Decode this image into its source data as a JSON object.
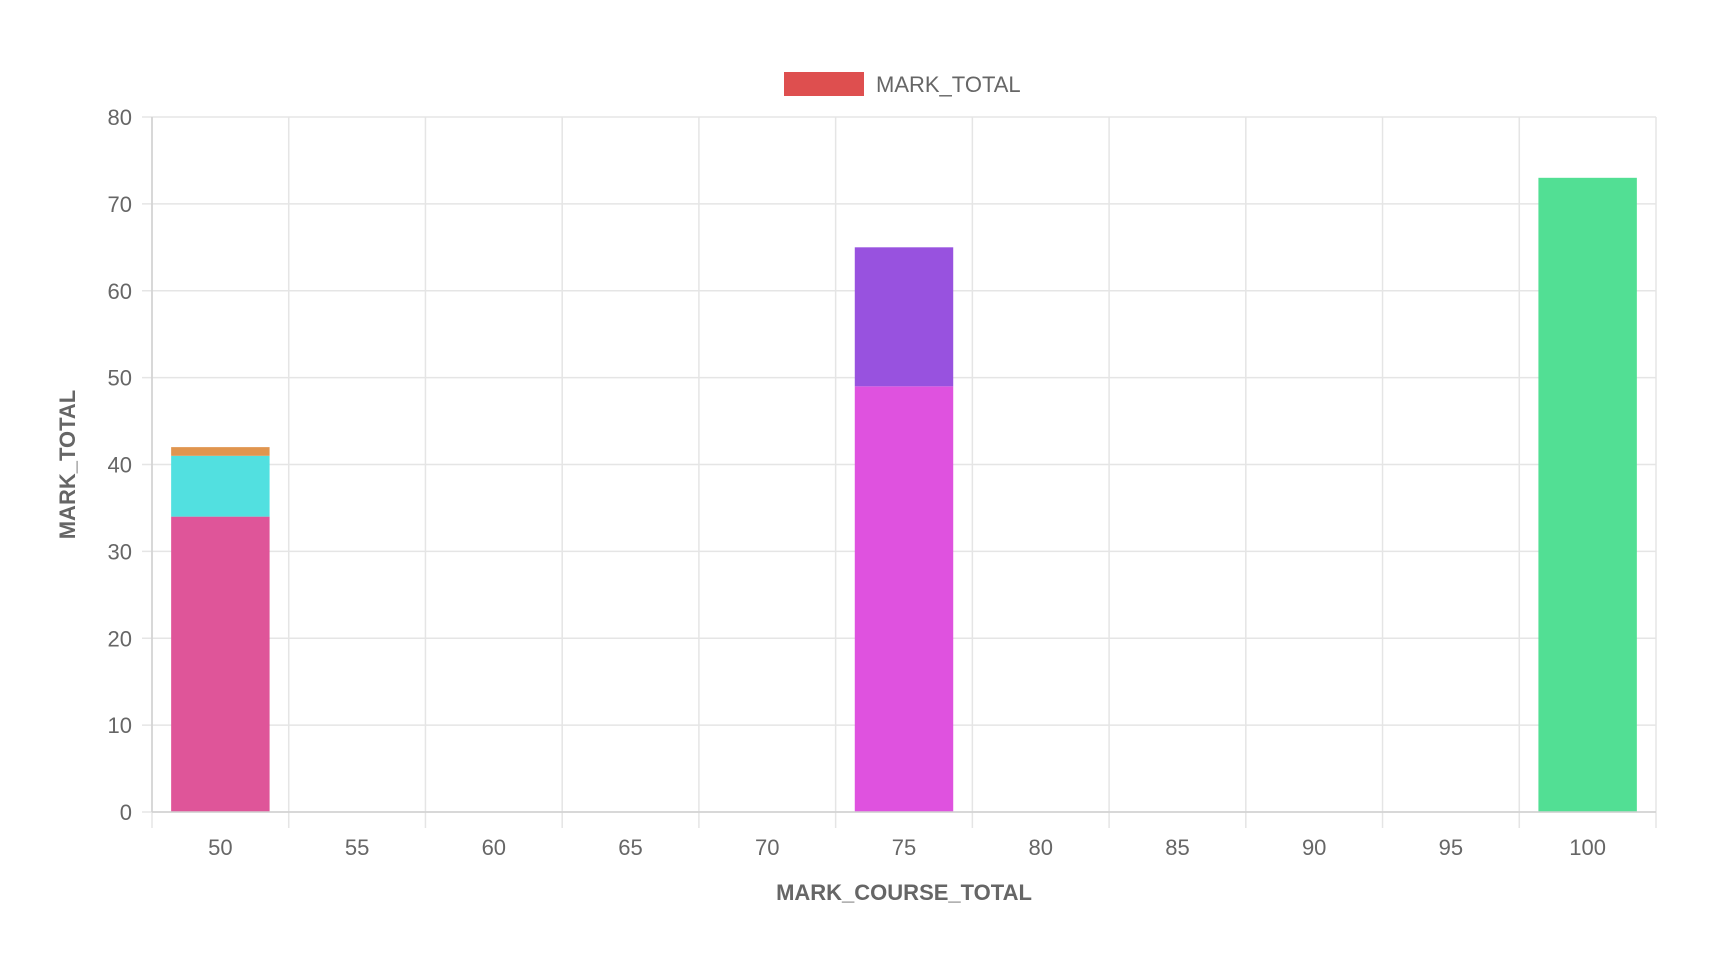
{
  "chart_data": {
    "type": "bar",
    "stacked": true,
    "xlabel": "MARK_COURSE_TOTAL",
    "ylabel": "MARK_TOTAL",
    "ylim": [
      0,
      80
    ],
    "yticks": [
      0,
      10,
      20,
      30,
      40,
      50,
      60,
      70,
      80
    ],
    "xticks": [
      50,
      55,
      60,
      65,
      70,
      75,
      80,
      85,
      90,
      95,
      100
    ],
    "xlim": [
      47.5,
      102.5
    ],
    "grid": true,
    "legend": {
      "placement": "top-center",
      "entries": [
        {
          "label": "MARK_TOTAL",
          "color": "#de4f4f"
        }
      ]
    },
    "bars": [
      {
        "x": 50,
        "segments": [
          {
            "value": 34,
            "color": "#df5599"
          },
          {
            "value": 7,
            "color": "#52e0e0"
          },
          {
            "value": 1,
            "color": "#e0954f"
          }
        ]
      },
      {
        "x": 75,
        "segments": [
          {
            "value": 49,
            "color": "#df52df"
          },
          {
            "value": 16,
            "color": "#9852df"
          }
        ]
      },
      {
        "x": 100,
        "segments": [
          {
            "value": 73,
            "color": "#52df94"
          }
        ]
      }
    ]
  }
}
